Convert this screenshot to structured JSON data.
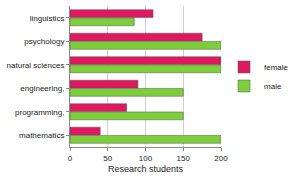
{
  "chart_data": {
    "type": "bar",
    "orientation": "horizontal",
    "x_label": "Research students",
    "categories": [
      "mathematics",
      "programming,",
      "engineering,",
      "natural sciences",
      "psychology",
      "linguistics"
    ],
    "series": [
      {
        "name": "male",
        "color": "#7ccf3a",
        "values": [
          200,
          150,
          150,
          200,
          200,
          85
        ]
      },
      {
        "name": "female",
        "color": "#e0185f",
        "values": [
          40,
          75,
          90,
          200,
          175,
          110
        ]
      }
    ],
    "xlim": [
      0,
      200
    ],
    "xticks": [
      0,
      50,
      100,
      150,
      200
    ],
    "grid": true,
    "legend": "right"
  }
}
